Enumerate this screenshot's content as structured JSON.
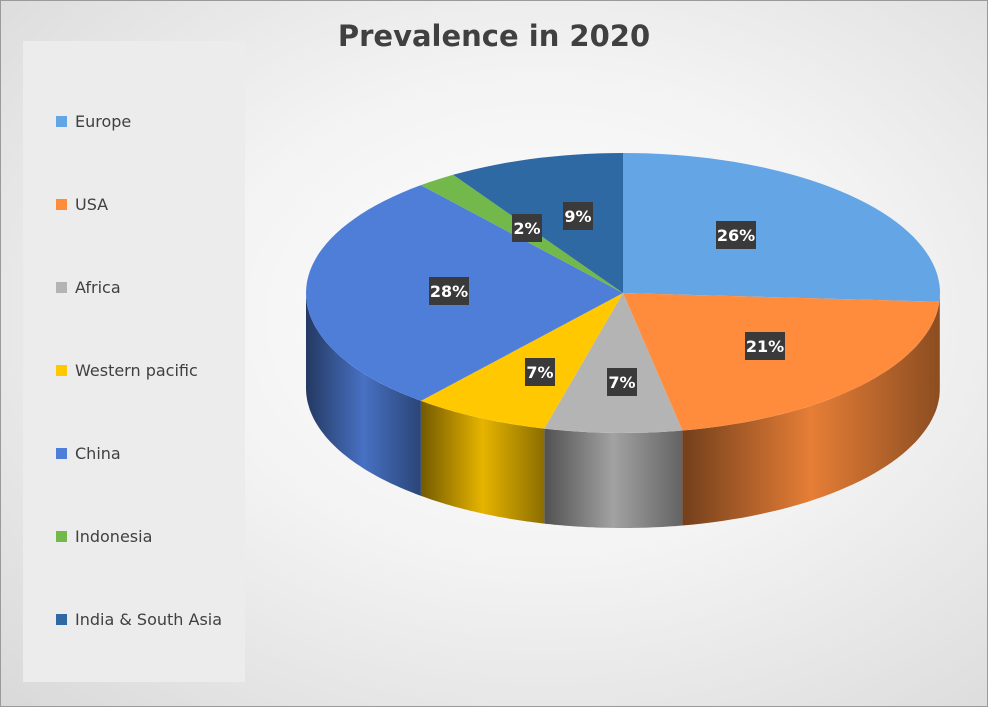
{
  "chart_data": {
    "type": "pie",
    "title": "Prevalence in 2020",
    "legend_position": "left",
    "labels": [
      "Europe",
      "USA",
      "Africa",
      "Western pacific",
      "China",
      "Indonesia",
      "India & South Asia"
    ],
    "values": [
      26,
      21,
      7,
      7,
      28,
      2,
      9
    ],
    "data_labels": [
      "26%",
      "21%",
      "7%",
      "7%",
      "28%",
      "2%",
      "9%"
    ],
    "colors": [
      "#64a5e6",
      "#ff8c3c",
      "#b4b4b4",
      "#ffc800",
      "#4f7ed9",
      "#72b84b",
      "#2f69a4"
    ]
  }
}
